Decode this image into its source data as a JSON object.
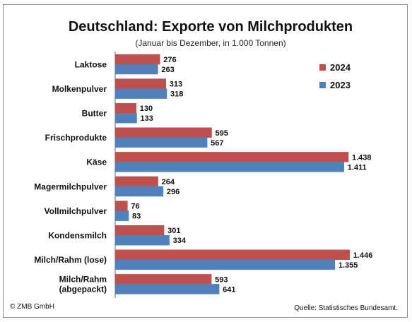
{
  "chart_data": {
    "type": "bar",
    "orientation": "horizontal",
    "title": "Deutschland: Exporte von Milchprodukten",
    "subtitle": "(Januar bis Dezember, in 1.000 Tonnen)",
    "categories": [
      [
        "Laktose"
      ],
      [
        "Molkenpulver"
      ],
      [
        "Butter"
      ],
      [
        "Frischprodukte"
      ],
      [
        "Käse"
      ],
      [
        "Magermilchpulver"
      ],
      [
        "Vollmilchpulver"
      ],
      [
        "Kondensmilch"
      ],
      [
        "Milch/Rahm (lose)"
      ],
      [
        "Milch/Rahm",
        "(abgepackt)"
      ]
    ],
    "series": [
      {
        "name": "2024",
        "color": "#c0504d",
        "values": [
          276,
          313,
          130,
          595,
          1438,
          264,
          76,
          301,
          1446,
          593
        ],
        "labels": [
          "276",
          "313",
          "130",
          "595",
          "1.438",
          "264",
          "76",
          "301",
          "1.446",
          "593"
        ]
      },
      {
        "name": "2023",
        "color": "#4f81bd",
        "values": [
          263,
          318,
          133,
          567,
          1411,
          296,
          83,
          334,
          1355,
          641
        ],
        "labels": [
          "263",
          "318",
          "133",
          "567",
          "1.411",
          "296",
          "83",
          "334",
          "1.355",
          "641"
        ]
      }
    ],
    "xlim": [
      0,
      1730
    ],
    "legend_position": "top-right",
    "grid": false
  },
  "footer": {
    "copyright": "© ZMB GmbH",
    "source": "Quelle: Statistisches Bundesamt."
  }
}
